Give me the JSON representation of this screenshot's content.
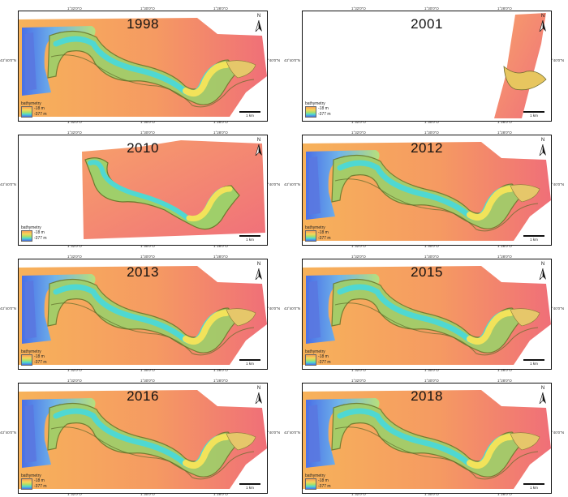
{
  "figure": {
    "panels": [
      {
        "year": "1998",
        "coverage": "full-left-gap"
      },
      {
        "year": "2001",
        "coverage": "east-strip"
      },
      {
        "year": "2010",
        "coverage": "partial-west"
      },
      {
        "year": "2012",
        "coverage": "full"
      },
      {
        "year": "2013",
        "coverage": "full"
      },
      {
        "year": "2015",
        "coverage": "full"
      },
      {
        "year": "2016",
        "coverage": "full"
      },
      {
        "year": "2018",
        "coverage": "full"
      }
    ],
    "lon_ticks": [
      "1°32'0\"O",
      "1°30'0\"O",
      "1°28'0\"O"
    ],
    "lat_tick": "43°40'0\"N",
    "legend": {
      "title": "bathymetry",
      "max": "-18 m",
      "min": "-377 m"
    },
    "scale_label": "1 km",
    "north_label": "N",
    "colors": {
      "shallow": "#f7a155",
      "mid_yellow": "#f5d65a",
      "green": "#a7e06a",
      "cyan": "#4fd8d2",
      "deep": "#4a6fe6",
      "background_red": "#f07a6e"
    }
  }
}
